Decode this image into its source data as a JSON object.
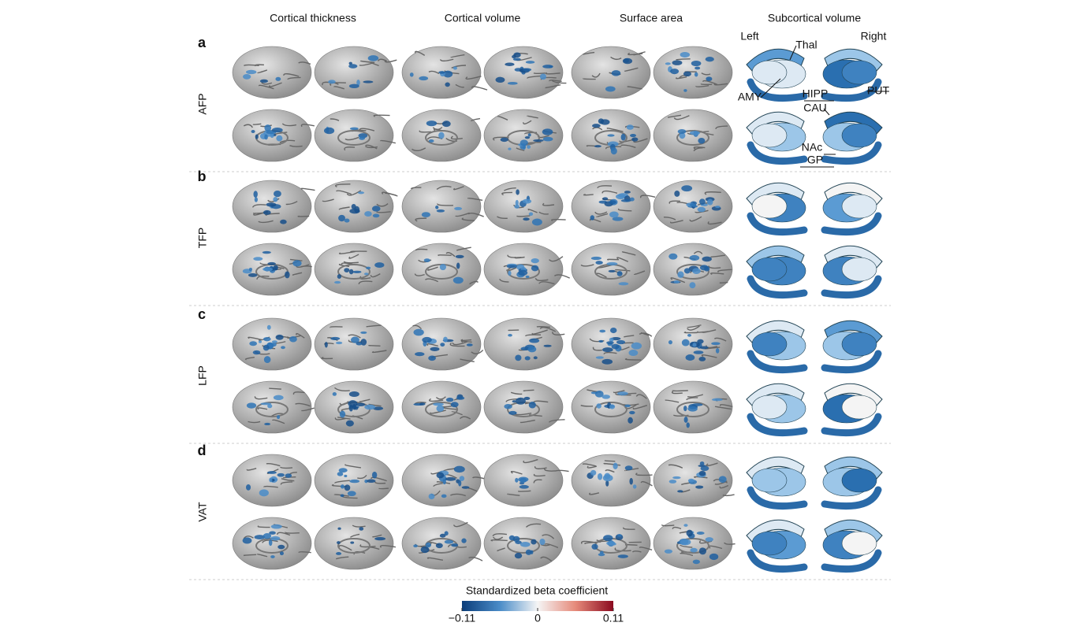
{
  "columns": [
    "Cortical thickness",
    "Cortical volume",
    "Surface area",
    "Subcortical volume"
  ],
  "rows": [
    {
      "letter": "a",
      "label": "AFP"
    },
    {
      "letter": "b",
      "label": "TFP"
    },
    {
      "letter": "c",
      "label": "LFP"
    },
    {
      "letter": "d",
      "label": "VAT"
    }
  ],
  "subcortical_labels": {
    "left": "Left",
    "right": "Right",
    "regions": [
      "Thal",
      "PUT",
      "AMY",
      "HIPP",
      "CAU",
      "NAc",
      "GP"
    ]
  },
  "colorbar": {
    "title": "Standardized beta coefficient",
    "range": [
      -0.11,
      0.11
    ],
    "ticks": [
      {
        "value": -0.11,
        "label": "−0.11"
      },
      0,
      0.11
    ]
  }
}
